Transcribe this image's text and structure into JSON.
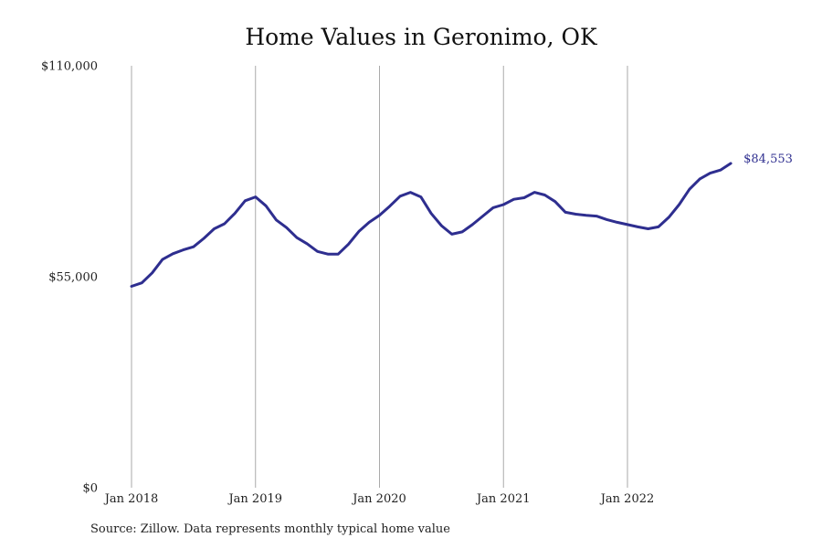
{
  "chart_data": {
    "type": "line",
    "title": "Home Values in Geronimo, OK",
    "xlabel": "",
    "ylabel": "",
    "ylim": [
      0,
      110000
    ],
    "yticks": [
      0,
      55000,
      110000
    ],
    "ytick_labels": [
      "$0",
      "$55,000",
      "$110,000"
    ],
    "xticks": [
      "Jan 2018",
      "Jan 2019",
      "Jan 2020",
      "Jan 2021",
      "Jan 2022"
    ],
    "grid": "vertical",
    "color": "#2e2e8f",
    "end_label": "$84,553",
    "series": [
      {
        "values": [
          52500,
          53400,
          56000,
          59500,
          61000,
          62000,
          62800,
          65000,
          67500,
          68800,
          71500,
          74800,
          75800,
          73500,
          69800,
          67800,
          65200,
          63600,
          61600,
          60900,
          60900,
          63500,
          66800,
          69200,
          71000,
          73400,
          76000,
          77000,
          75800,
          71500,
          68300,
          66100,
          66700,
          68600,
          70800,
          73000,
          73800,
          75200,
          75600,
          77000,
          76300,
          74600,
          71800,
          71300,
          71000,
          70800,
          69900,
          69200,
          68600,
          68000,
          67500,
          68000,
          70500,
          73800,
          77800,
          80500,
          82000,
          82800,
          84553
        ]
      }
    ]
  },
  "source": "Source: Zillow. Data represents monthly typical home value"
}
